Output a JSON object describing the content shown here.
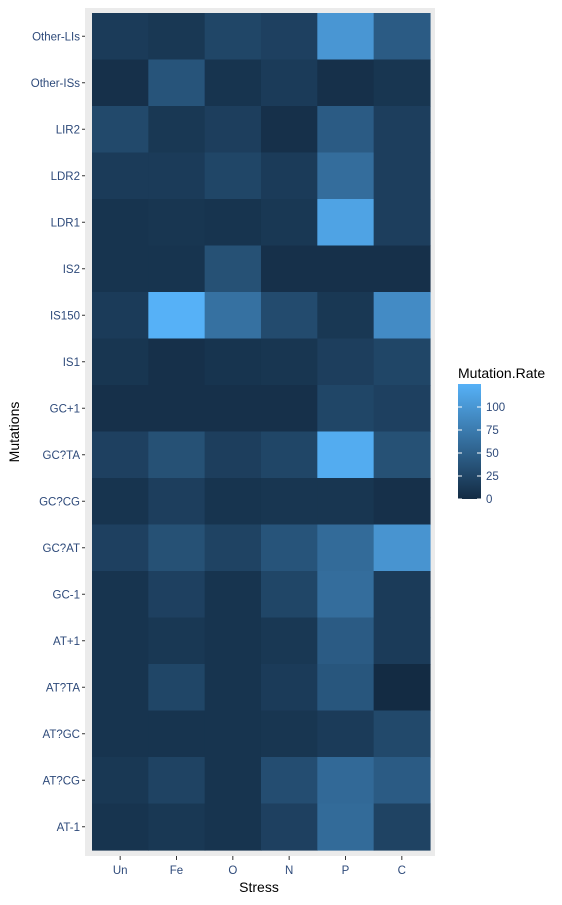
{
  "chart_data": {
    "type": "heatmap",
    "xlabel": "Stress",
    "ylabel": "Mutations",
    "x_categories": [
      "Un",
      "Fe",
      "O",
      "N",
      "P",
      "C"
    ],
    "y_categories": [
      "Other-LIs",
      "Other-ISs",
      "LIR2",
      "LDR2",
      "LDR1",
      "IS2",
      "IS150",
      "IS1",
      "GC+1",
      "GC?TA",
      "GC?CG",
      "GC?AT",
      "GC-1",
      "AT+1",
      "AT?TA",
      "AT?GC",
      "AT?CG",
      "AT-1"
    ],
    "values": [
      [
        15,
        12,
        25,
        20,
        100,
        45
      ],
      [
        5,
        38,
        8,
        15,
        5,
        10
      ],
      [
        28,
        12,
        18,
        5,
        45,
        18
      ],
      [
        15,
        15,
        25,
        15,
        62,
        18
      ],
      [
        8,
        10,
        8,
        12,
        112,
        18
      ],
      [
        8,
        8,
        35,
        5,
        5,
        5
      ],
      [
        15,
        125,
        65,
        30,
        12,
        90
      ],
      [
        10,
        5,
        8,
        10,
        18,
        25
      ],
      [
        5,
        5,
        5,
        5,
        25,
        20
      ],
      [
        20,
        35,
        18,
        25,
        120,
        35
      ],
      [
        8,
        18,
        8,
        10,
        10,
        5
      ],
      [
        20,
        35,
        22,
        38,
        60,
        98
      ],
      [
        8,
        20,
        8,
        25,
        62,
        15
      ],
      [
        8,
        12,
        8,
        12,
        45,
        15
      ],
      [
        8,
        25,
        8,
        15,
        40,
        0
      ],
      [
        8,
        8,
        8,
        10,
        15,
        28
      ],
      [
        12,
        22,
        8,
        32,
        58,
        45
      ],
      [
        8,
        12,
        8,
        20,
        60,
        22
      ]
    ],
    "legend": {
      "title": "Mutation.Rate",
      "ticks": [
        100,
        75,
        50,
        25,
        0
      ],
      "range": [
        0,
        125
      ],
      "low_color": "#132B43",
      "high_color": "#56B1F7",
      "placement": "right"
    },
    "panel_background": "#EBEBEB",
    "grid": true
  }
}
